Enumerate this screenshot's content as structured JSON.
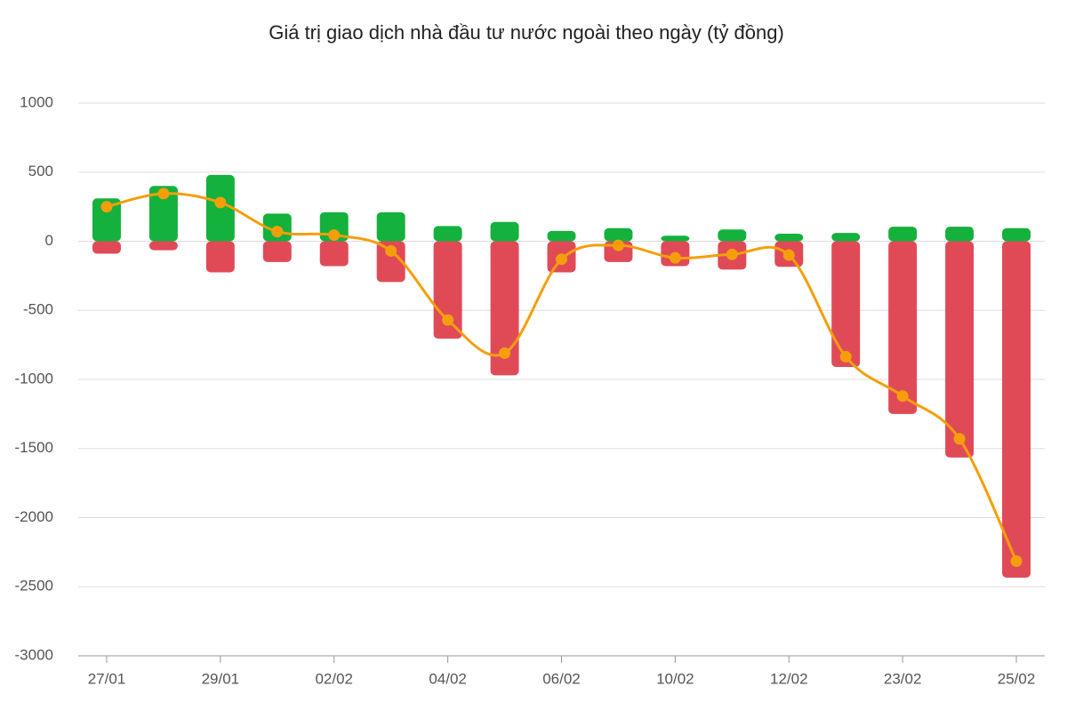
{
  "chart_data": {
    "type": "bar",
    "title": "Giá trị giao dịch nhà đầu tư nước ngoài theo ngày (tỷ đồng)",
    "categories": [
      "27/01",
      null,
      "29/01",
      null,
      "02/02",
      null,
      "04/02",
      null,
      "06/02",
      null,
      "10/02",
      null,
      "12/02",
      null,
      "23/02",
      null,
      "25/02"
    ],
    "series": [
      {
        "type": "bar",
        "color": "#14b13c",
        "values": [
          310,
          400,
          480,
          200,
          210,
          210,
          110,
          140,
          75,
          95,
          40,
          85,
          55,
          60,
          105,
          105,
          95
        ]
      },
      {
        "type": "bar",
        "color": "#e04a57",
        "values": [
          -90,
          -65,
          -225,
          -150,
          -180,
          -295,
          -705,
          -970,
          -225,
          -150,
          -180,
          -205,
          -185,
          -910,
          -1250,
          -1565,
          -2435
        ]
      },
      {
        "type": "line",
        "color": "#f59e0b",
        "values": [
          250,
          345,
          280,
          70,
          45,
          -70,
          -570,
          -810,
          -130,
          -30,
          -120,
          -95,
          -100,
          -835,
          -1120,
          -1430,
          -2315
        ]
      }
    ],
    "ylim": [
      -3000,
      1000
    ],
    "yticks": [
      1000,
      500,
      0,
      -500,
      -1000,
      -1500,
      -2000,
      -2500,
      -3000
    ],
    "grid": true
  }
}
